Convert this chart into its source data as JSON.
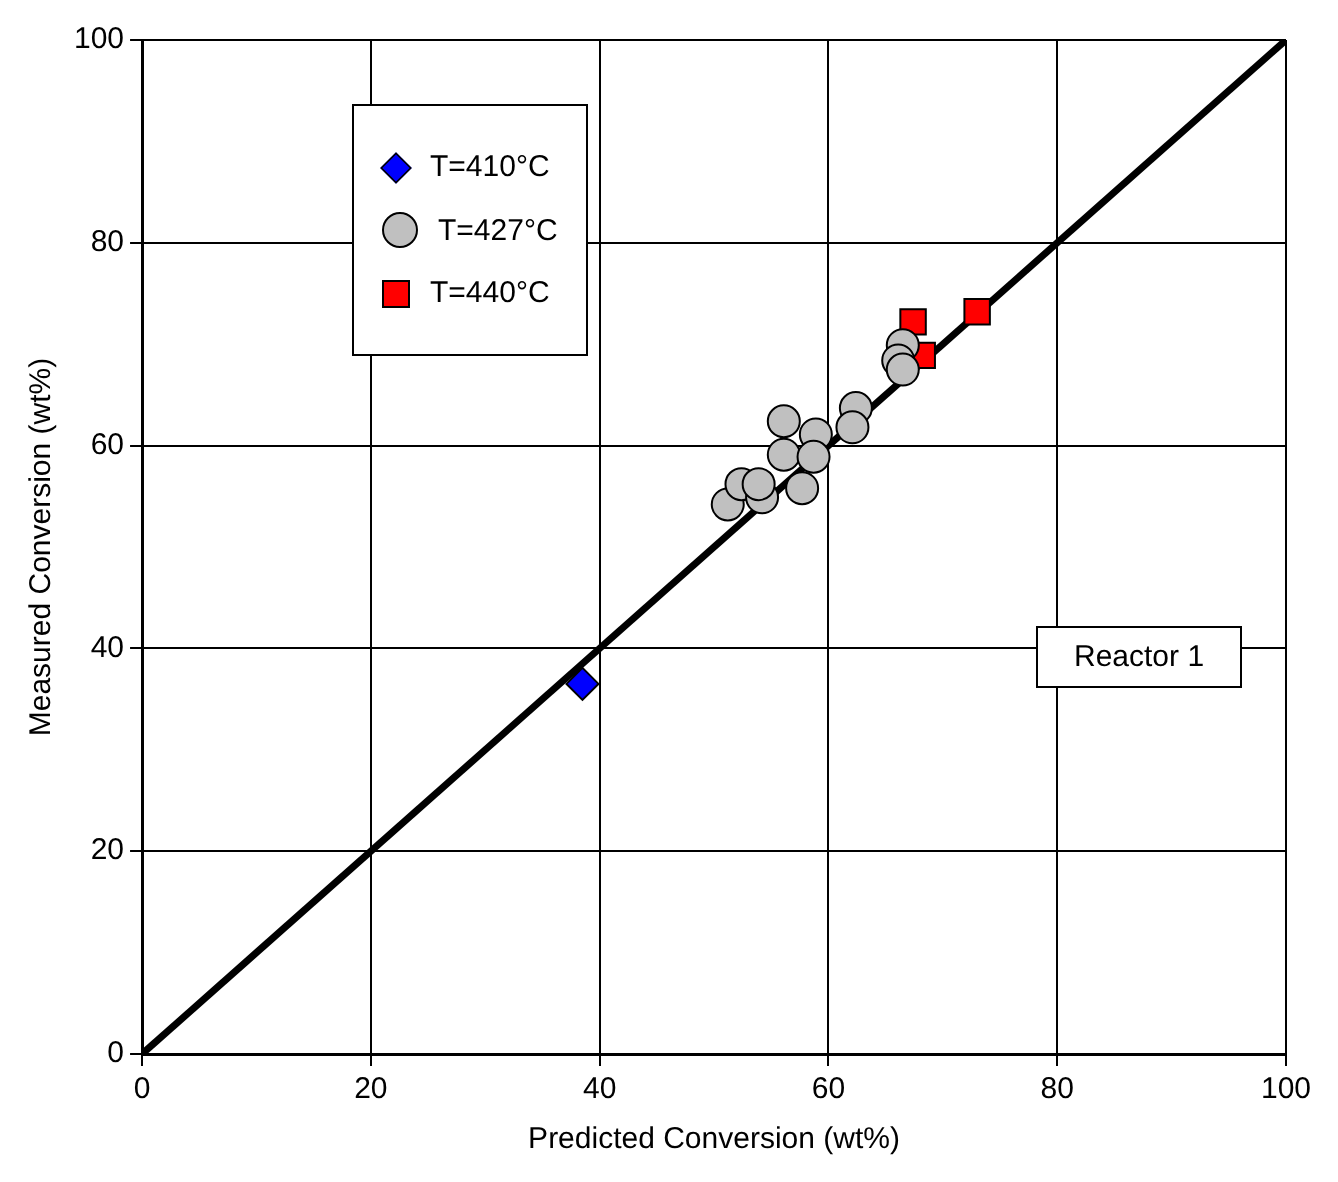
{
  "chart_data": {
    "type": "scatter",
    "xlabel": "Predicted Conversion (wt%)",
    "ylabel": "Measured Conversion (wt%)",
    "xlim": [
      0,
      100
    ],
    "ylim": [
      0,
      100
    ],
    "xticks": [
      0,
      20,
      40,
      60,
      80,
      100
    ],
    "yticks": [
      0,
      20,
      40,
      60,
      80,
      100
    ],
    "grid": true,
    "legend": "top left",
    "annotations": [
      "Reactor 1"
    ],
    "series": [
      {
        "type": "line",
        "color": "#000000",
        "marker": "none",
        "x": [
          0,
          100
        ],
        "values": [
          0,
          100
        ]
      },
      {
        "name": "T=410°C",
        "color": "#0000ff",
        "marker": "diamond",
        "x": [
          38.5
        ],
        "values": [
          36.5
        ]
      },
      {
        "name": "T=427°C",
        "color": "#c0c0c0",
        "marker": "circle",
        "x": [
          51.2,
          52.4,
          54.2,
          53.9,
          56.1,
          56.1,
          57.7,
          58.9,
          58.7,
          62.4,
          62.1,
          66.5,
          66.1,
          66.5
        ],
        "values": [
          54.2,
          56.2,
          54.9,
          56.2,
          62.4,
          59.1,
          55.8,
          61.1,
          58.9,
          63.7,
          61.8,
          69.9,
          68.4,
          67.5
        ]
      },
      {
        "name": "T=440°C",
        "color": "#ff0000",
        "marker": "square",
        "x": [
          67.4,
          68.2,
          73.0
        ],
        "values": [
          72.2,
          68.9,
          73.2
        ]
      }
    ]
  }
}
